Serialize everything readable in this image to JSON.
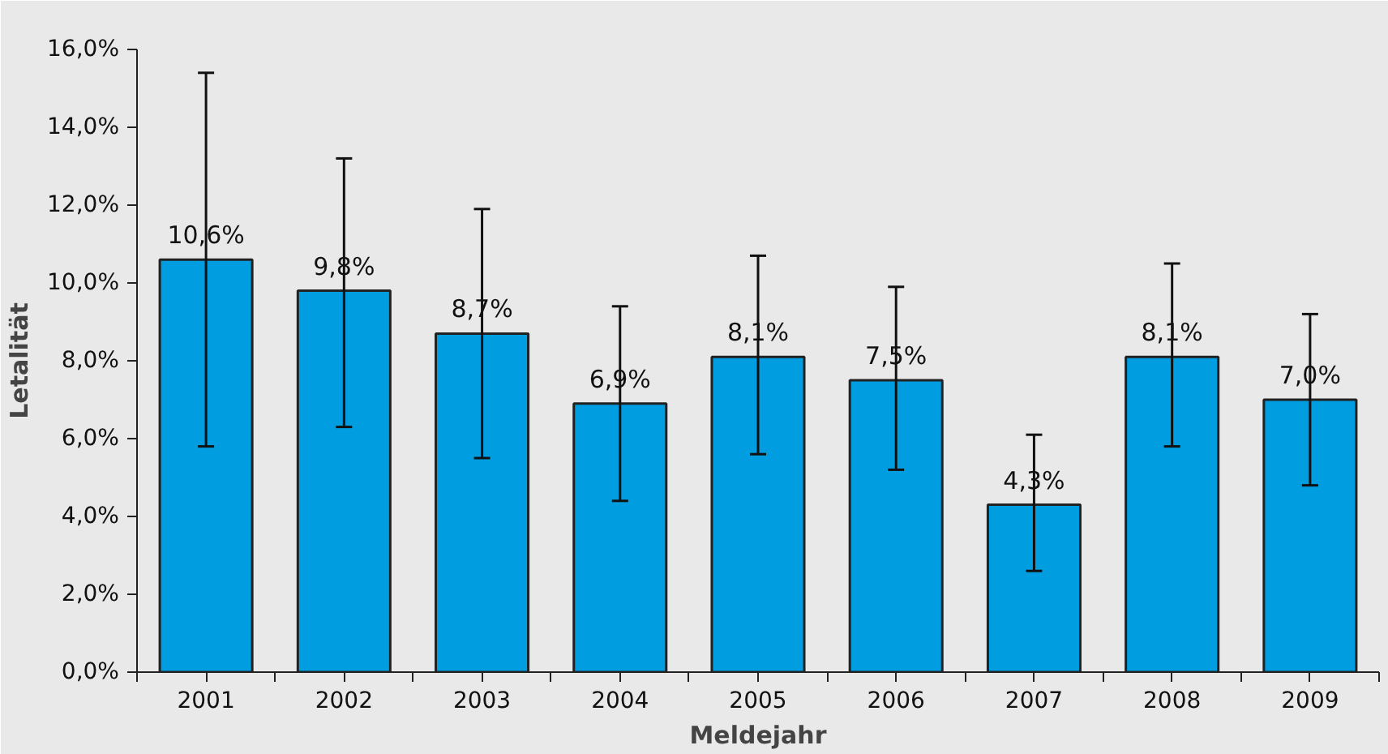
{
  "chart_data": {
    "type": "bar",
    "xlabel": "Meldejahr",
    "ylabel": "Letalität",
    "categories": [
      "2001",
      "2002",
      "2003",
      "2004",
      "2005",
      "2006",
      "2007",
      "2008",
      "2009"
    ],
    "values": [
      10.6,
      9.8,
      8.7,
      6.9,
      8.1,
      7.5,
      4.3,
      8.1,
      7.0
    ],
    "value_labels": [
      "10,6%",
      "9,8%",
      "8,7%",
      "6,9%",
      "8,1%",
      "7,5%",
      "4,3%",
      "8,1%",
      "7,0%"
    ],
    "errors": [
      [
        5.8,
        15.4
      ],
      [
        6.3,
        13.2
      ],
      [
        5.5,
        11.9
      ],
      [
        4.4,
        9.4
      ],
      [
        5.6,
        10.7
      ],
      [
        5.2,
        9.9
      ],
      [
        2.6,
        6.1
      ],
      [
        5.8,
        10.5
      ],
      [
        4.8,
        9.2
      ]
    ],
    "color": "#009ee0",
    "ylim": [
      0,
      16
    ],
    "yticks": [
      {
        "value": 0,
        "label": "0,0%"
      },
      {
        "value": 2,
        "label": "2,0%"
      },
      {
        "value": 4,
        "label": "4,0%"
      },
      {
        "value": 6,
        "label": "6,0%"
      },
      {
        "value": 8,
        "label": "8,0%"
      },
      {
        "value": 10,
        "label": "10,0%"
      },
      {
        "value": 12,
        "label": "12,0%"
      },
      {
        "value": 14,
        "label": "14,0%"
      },
      {
        "value": 16,
        "label": "16,0%"
      }
    ],
    "grid": false
  }
}
